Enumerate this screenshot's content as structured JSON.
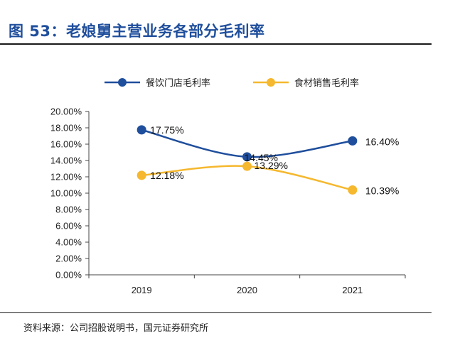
{
  "figure": {
    "title": "图 53：老娘舅主营业务各部分毛利率",
    "source": "资料来源：公司招股说明书，国元证券研究所"
  },
  "colors": {
    "title": "#1f4e9c",
    "series1": "#1f4e9c",
    "series2": "#f5b82e"
  },
  "chart_data": {
    "type": "line",
    "categories": [
      "2019",
      "2020",
      "2021"
    ],
    "series": [
      {
        "name": "餐饮门店毛利率",
        "values": [
          17.75,
          14.45,
          16.4
        ],
        "labels": [
          "17.75%",
          "14.45%",
          "16.40%"
        ],
        "color": "#1f4e9c"
      },
      {
        "name": "食材销售毛利率",
        "values": [
          12.18,
          13.29,
          10.39
        ],
        "labels": [
          "12.18%",
          "13.29%",
          "10.39%"
        ],
        "color": "#f5b82e"
      }
    ],
    "ylim": [
      0,
      20
    ],
    "yticks": [
      "0.00%",
      "2.00%",
      "4.00%",
      "6.00%",
      "8.00%",
      "10.00%",
      "12.00%",
      "14.00%",
      "16.00%",
      "18.00%",
      "20.00%"
    ],
    "grid": false,
    "legend": "top-center",
    "smooth": true
  }
}
